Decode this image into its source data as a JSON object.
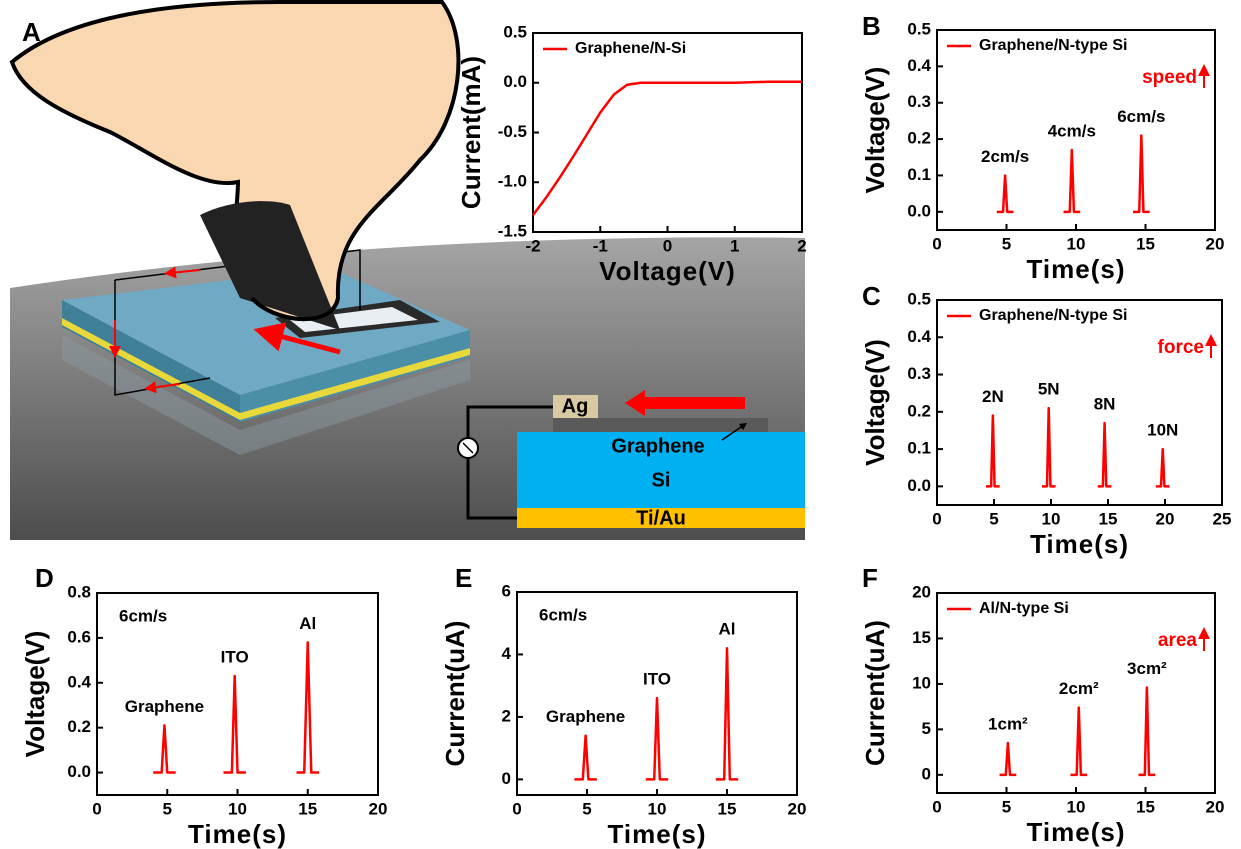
{
  "illustration": {
    "panel": "A",
    "labels": {
      "ag": "Ag",
      "graphene": "Graphene",
      "si": "Si",
      "tiau": "Ti/Au"
    }
  },
  "chart_data": [
    {
      "type": "line",
      "xlabel": "Voltage(V)",
      "ylabel": "Current(mA)",
      "xlim": [
        -2,
        2
      ],
      "ylim": [
        -1.5,
        0.5
      ],
      "xticks": [
        -2,
        -1,
        0,
        1,
        2
      ],
      "yticks": [
        -1.5,
        {
          "value": -1,
          "label": "-1.0"
        },
        -0.5,
        {
          "value": 0,
          "label": "0.0"
        },
        0.5
      ],
      "x": [
        -2,
        -1.8,
        -1.6,
        -1.4,
        -1.2,
        -1.0,
        -0.8,
        -0.6,
        -0.4,
        0,
        0.5,
        1,
        1.5,
        2
      ],
      "series": [
        {
          "name": "Graphene/N-Si",
          "color": "#ff0000",
          "values": [
            -1.33,
            -1.15,
            -0.95,
            -0.74,
            -0.52,
            -0.3,
            -0.12,
            -0.02,
            0,
            0,
            0,
            0,
            0.01,
            0.01
          ]
        }
      ]
    },
    {
      "type": "line",
      "panel": "B",
      "xlabel": "Time(s)",
      "ylabel": "Voltage(V)",
      "xlim": [
        0,
        20
      ],
      "ylim": [
        -0.05,
        0.5
      ],
      "xticks": [
        0,
        5,
        10,
        15,
        20
      ],
      "yticks": [
        {
          "value": 0,
          "label": "0.0"
        },
        0.1,
        0.2,
        0.3,
        0.4,
        0.5
      ],
      "x": [
        4.3,
        4.75,
        4.9,
        5.05,
        5.5,
        7.2,
        9.1,
        9.55,
        9.7,
        9.85,
        10.3,
        12.2,
        14.1,
        14.55,
        14.7,
        14.85,
        15.3
      ],
      "series": [
        {
          "name": "Graphene/N-type Si",
          "color": "#ff0000",
          "values": [
            0,
            0,
            0.1,
            0,
            0,
            null,
            0,
            0,
            0.17,
            0,
            0,
            null,
            0,
            0,
            0.21,
            0,
            0
          ]
        }
      ],
      "annotations": [
        "2cm/s",
        "4cm/s",
        "6cm/s"
      ],
      "note": "speed"
    },
    {
      "type": "line",
      "panel": "C",
      "xlabel": "Time(s)",
      "ylabel": "Voltage(V)",
      "xlim": [
        0,
        25
      ],
      "ylim": [
        -0.05,
        0.5
      ],
      "xticks": [
        0,
        5,
        10,
        15,
        20,
        25
      ],
      "yticks": [
        {
          "value": 0,
          "label": "0.0"
        },
        0.1,
        0.2,
        0.3,
        0.4,
        0.5
      ],
      "x": [
        4.3,
        4.75,
        4.9,
        5.05,
        5.5,
        7.3,
        9.2,
        9.65,
        9.8,
        9.95,
        10.4,
        12.2,
        14.1,
        14.55,
        14.7,
        14.85,
        15.3,
        17.2,
        19.2,
        19.65,
        19.8,
        19.95,
        20.4
      ],
      "series": [
        {
          "name": "Graphene/N-type Si",
          "color": "#ff0000",
          "values": [
            0,
            0,
            0.19,
            0,
            0,
            null,
            0,
            0,
            0.21,
            0,
            0,
            null,
            0,
            0,
            0.17,
            0,
            0,
            null,
            0,
            0,
            0.1,
            0,
            0
          ]
        }
      ],
      "annotations": [
        "2N",
        "5N",
        "8N",
        "10N"
      ],
      "note": "force"
    },
    {
      "type": "line",
      "panel": "D",
      "xlabel": "Time(s)",
      "ylabel": "Voltage(V)",
      "xlim": [
        0,
        20
      ],
      "ylim": [
        -0.1,
        0.8
      ],
      "xticks": [
        0,
        5,
        10,
        15,
        20
      ],
      "yticks": [
        {
          "value": 0,
          "label": "0.0"
        },
        0.2,
        0.4,
        0.6,
        0.8
      ],
      "x": [
        4.0,
        4.6,
        4.8,
        5.0,
        5.6,
        7.3,
        9.0,
        9.6,
        9.8,
        10.0,
        10.6,
        12.4,
        14.2,
        14.75,
        15.0,
        15.25,
        15.8
      ],
      "series": [
        {
          "name": null,
          "color": "#ff0000",
          "values": [
            0,
            0,
            0.21,
            0,
            0,
            null,
            0,
            0,
            0.43,
            0,
            0,
            null,
            0,
            0,
            0.58,
            0,
            0
          ]
        }
      ],
      "annotations": [
        "Graphene",
        "ITO",
        "Al"
      ],
      "condition": "6cm/s"
    },
    {
      "type": "line",
      "panel": "E",
      "xlabel": "Time(s)",
      "ylabel": "Current(uA)",
      "xlim": [
        0,
        20
      ],
      "ylim": [
        -0.5,
        6
      ],
      "xticks": [
        0,
        5,
        10,
        15,
        20
      ],
      "yticks": [
        0,
        2,
        4,
        6
      ],
      "x": [
        4.1,
        4.7,
        4.9,
        5.1,
        5.7,
        7.5,
        9.2,
        9.8,
        10.0,
        10.2,
        10.8,
        12.5,
        14.2,
        14.8,
        15.0,
        15.2,
        15.8
      ],
      "series": [
        {
          "name": null,
          "color": "#ff0000",
          "values": [
            0,
            0,
            1.4,
            0,
            0,
            null,
            0,
            0,
            2.6,
            0,
            0,
            null,
            0,
            0,
            4.2,
            0,
            0
          ]
        }
      ],
      "annotations": [
        "Graphene",
        "ITO",
        "Al"
      ],
      "condition": "6cm/s"
    },
    {
      "type": "line",
      "panel": "F",
      "xlabel": "Time(s)",
      "ylabel": "Current(uA)",
      "xlim": [
        0,
        20
      ],
      "ylim": [
        -2,
        20
      ],
      "xticks": [
        0,
        5,
        10,
        15,
        20
      ],
      "yticks": [
        0,
        5,
        10,
        15,
        20
      ],
      "x": [
        4.5,
        4.95,
        5.1,
        5.25,
        5.7,
        7.7,
        9.6,
        10.05,
        10.2,
        10.35,
        10.8,
        12.7,
        14.5,
        14.95,
        15.1,
        15.25,
        15.7
      ],
      "series": [
        {
          "name": "Al/N-type Si",
          "color": "#ff0000",
          "values": [
            0,
            0,
            3.5,
            0,
            0,
            null,
            0,
            0,
            7.4,
            0,
            0,
            null,
            0,
            0,
            9.6,
            0,
            0
          ]
        }
      ],
      "annotations": [
        "1cm²",
        "2cm²",
        "3cm²"
      ],
      "note": "area"
    }
  ]
}
